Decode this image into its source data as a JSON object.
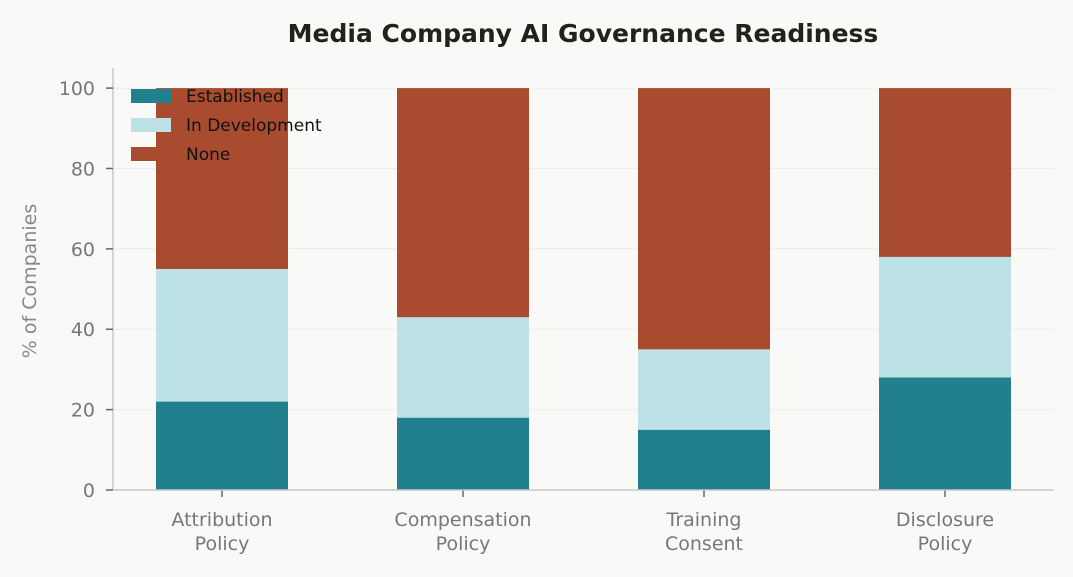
{
  "chart_data": {
    "type": "bar",
    "stacked": true,
    "title": "Media Company AI Governance Readiness",
    "xlabel": "",
    "ylabel": "% of Companies",
    "categories": [
      [
        "Attribution",
        "Policy"
      ],
      [
        "Compensation",
        "Policy"
      ],
      [
        "Training",
        "Consent"
      ],
      [
        "Disclosure",
        "Policy"
      ]
    ],
    "series": [
      {
        "name": "Established",
        "color": "#21808d",
        "values": [
          22,
          18,
          15,
          28
        ]
      },
      {
        "name": "In Development",
        "color": "#bce1e6",
        "values": [
          33,
          25,
          20,
          30
        ]
      },
      {
        "name": "None",
        "color": "#a84b2f",
        "values": [
          45,
          57,
          65,
          42
        ]
      }
    ],
    "ylim": [
      0,
      105
    ],
    "yticks": [
      0,
      20,
      40,
      60,
      80,
      100
    ],
    "grid": true,
    "legend_position": "top-left"
  }
}
